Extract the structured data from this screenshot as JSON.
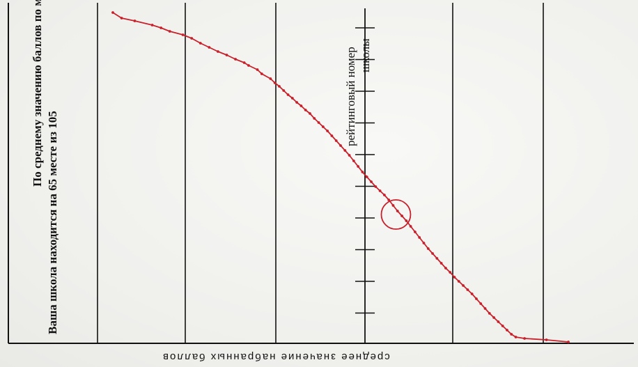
{
  "chart_data": {
    "type": "line",
    "title": "",
    "annotation_line1": "По среднему значению баллов по математике",
    "annotation_line2": "Ваша школа находится на  65 месте из 105",
    "rank_axis_label": "рейтинговый номер",
    "rank_axis_label_2": "школы",
    "xlabel": "среднее значение набранных баллов",
    "highlight_rank": 65,
    "total_schools": 105,
    "line_color": "#c8202a",
    "series": [
      {
        "values": [
          [
            1,
            18
          ],
          [
            3,
            26
          ],
          [
            6,
            30
          ],
          [
            10,
            36
          ],
          [
            12,
            40
          ],
          [
            14,
            45
          ],
          [
            17,
            50
          ],
          [
            19,
            55
          ],
          [
            21,
            62
          ],
          [
            23,
            68
          ],
          [
            25,
            74
          ],
          [
            27,
            79
          ],
          [
            29,
            85
          ],
          [
            31,
            90
          ],
          [
            32,
            94
          ],
          [
            34,
            100
          ],
          [
            35,
            106
          ],
          [
            37,
            113
          ],
          [
            38,
            119
          ],
          [
            39,
            124
          ],
          [
            40,
            130
          ],
          [
            41,
            136
          ],
          [
            42,
            141
          ],
          [
            43,
            147
          ],
          [
            44,
            152
          ],
          [
            45,
            158
          ],
          [
            46,
            163
          ],
          [
            47,
            170
          ],
          [
            48,
            176
          ],
          [
            49,
            182
          ],
          [
            50,
            188
          ],
          [
            51,
            195
          ],
          [
            52,
            202
          ],
          [
            53,
            209
          ],
          [
            54,
            216
          ],
          [
            55,
            223
          ],
          [
            56,
            231
          ],
          [
            57,
            239
          ],
          [
            58,
            247
          ],
          [
            59,
            254
          ],
          [
            60,
            261
          ],
          [
            61,
            268
          ],
          [
            62,
            274
          ],
          [
            63,
            280
          ],
          [
            64,
            287
          ],
          [
            65,
            295
          ],
          [
            66,
            303
          ],
          [
            67,
            310
          ],
          [
            68,
            317
          ],
          [
            69,
            325
          ],
          [
            70,
            333
          ],
          [
            71,
            341
          ],
          [
            72,
            349
          ],
          [
            73,
            357
          ],
          [
            74,
            364
          ],
          [
            75,
            371
          ],
          [
            76,
            378
          ],
          [
            77,
            385
          ],
          [
            78,
            391
          ],
          [
            79,
            398
          ],
          [
            80,
            404
          ],
          [
            81,
            410
          ],
          [
            82,
            416
          ],
          [
            83,
            422
          ],
          [
            84,
            429
          ],
          [
            85,
            436
          ],
          [
            86,
            443
          ],
          [
            87,
            450
          ],
          [
            88,
            456
          ],
          [
            89,
            462
          ],
          [
            90,
            468
          ],
          [
            91,
            474
          ],
          [
            92,
            480
          ],
          [
            93,
            484
          ],
          [
            95,
            486
          ],
          [
            100,
            488
          ],
          [
            105,
            491
          ]
        ]
      }
    ],
    "grid": true
  }
}
